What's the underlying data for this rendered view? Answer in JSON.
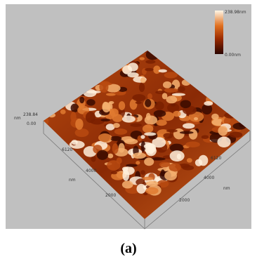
{
  "figure": {
    "panel_label": "(a)",
    "colorbar": {
      "max_label": "238.98nm",
      "min_label": "0.00nm"
    },
    "z_axis": {
      "top_label": "238.84",
      "bottom_label": "0.00",
      "unit": "nm"
    },
    "x_axis": {
      "ticks": [
        "6120",
        "4000",
        "2000"
      ],
      "unit": "nm"
    },
    "y_axis": {
      "ticks": [
        "6120",
        "4000",
        "2000"
      ],
      "unit": "nm"
    }
  }
}
